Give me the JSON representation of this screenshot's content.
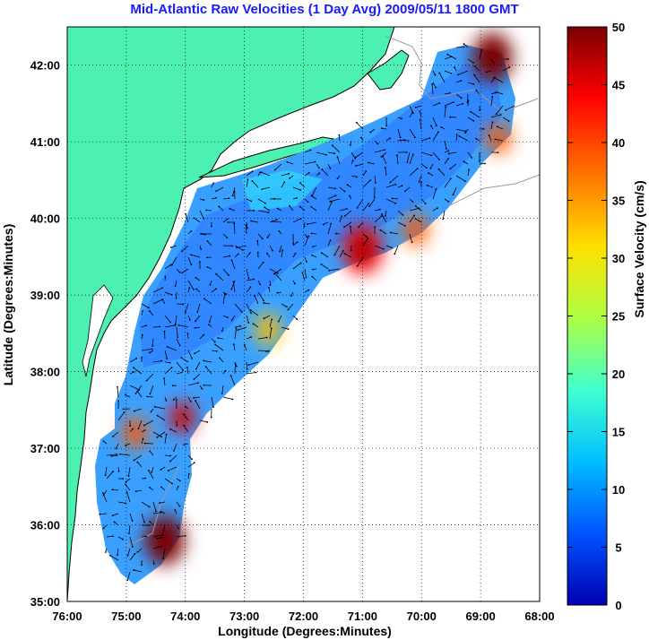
{
  "chart_data": {
    "type": "heatmap",
    "title": "Mid-Atlantic Raw Velocities (1 Day Avg) 2009/05/11 1800 GMT",
    "xlabel": "Longitude (Degrees:Minutes)",
    "ylabel": "Latitude (Degrees:Minutes)",
    "colorbar_label": "Surface Velocity (cm/s)",
    "x_ticks": [
      "76:00",
      "75:00",
      "74:00",
      "73:00",
      "72:00",
      "71:00",
      "70:00",
      "69:00",
      "68:00"
    ],
    "y_ticks": [
      "35:00",
      "36:00",
      "37:00",
      "38:00",
      "39:00",
      "40:00",
      "41:00",
      "42:00"
    ],
    "colorbar_ticks": [
      "0",
      "5",
      "10",
      "15",
      "20",
      "25",
      "30",
      "35",
      "40",
      "45",
      "50"
    ],
    "xlim": [
      -76,
      -68
    ],
    "ylim": [
      35,
      42.5
    ],
    "clim": [
      0,
      50
    ],
    "grid": true,
    "hotspots": [
      {
        "lon": -74.35,
        "lat": 35.8,
        "speed": 50
      },
      {
        "lon": -71.0,
        "lat": 39.6,
        "speed": 45
      },
      {
        "lon": -68.8,
        "lat": 42.1,
        "speed": 47
      },
      {
        "lon": -70.1,
        "lat": 39.85,
        "speed": 38
      },
      {
        "lon": -74.05,
        "lat": 37.4,
        "speed": 42
      },
      {
        "lon": -74.85,
        "lat": 37.2,
        "speed": 38
      },
      {
        "lon": -72.6,
        "lat": 38.55,
        "speed": 33
      },
      {
        "lon": -68.7,
        "lat": 41.05,
        "speed": 36
      }
    ],
    "colors": {
      "land": "#4cf0b0",
      "coastline": "#000000",
      "bathymetry": "#9a9a9a",
      "vectors": "#000000",
      "title": "#1a1aff",
      "colormap": [
        "#0000b0",
        "#0050ff",
        "#00c0ff",
        "#40ffd0",
        "#b0ff40",
        "#ffe000",
        "#ff7000",
        "#ff0000",
        "#7a0000"
      ]
    }
  }
}
